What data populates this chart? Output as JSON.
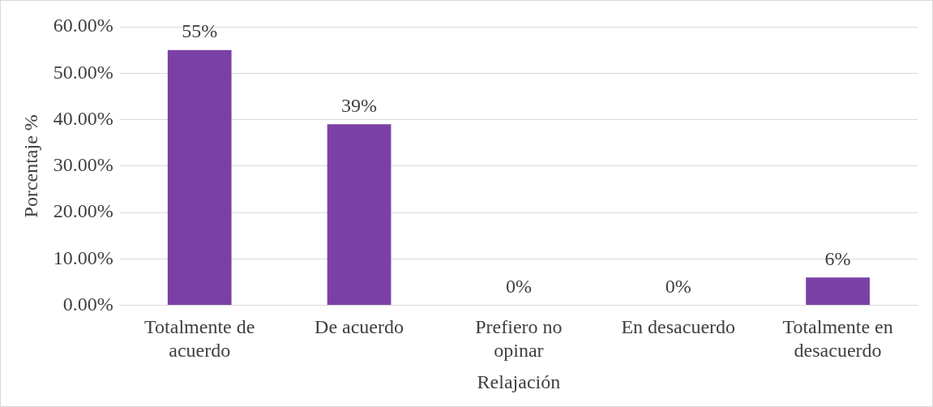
{
  "chart_data": {
    "type": "bar",
    "xlabel": "Relajación",
    "ylabel": "Porcentaje %",
    "categories": [
      "Totalmente de acuerdo",
      "De acuerdo",
      "Prefiero no opinar",
      "En desacuerdo",
      "Totalmente en desacuerdo"
    ],
    "values": [
      55,
      39,
      0,
      0,
      6
    ],
    "color": "#7b40a6",
    "value_labels": [
      "55%",
      "39%",
      "0%",
      "0%",
      "6%"
    ],
    "ylim": [
      0,
      60
    ],
    "yticks": [
      {
        "value": 0,
        "label": "0.00%"
      },
      {
        "value": 10,
        "label": "10.00%"
      },
      {
        "value": 20,
        "label": "20.00%"
      },
      {
        "value": 30,
        "label": "30.00%"
      },
      {
        "value": 40,
        "label": "40.00%"
      },
      {
        "value": 50,
        "label": "50.00%"
      },
      {
        "value": 60,
        "label": "60.00%"
      }
    ],
    "grid": "y",
    "legend": false
  }
}
